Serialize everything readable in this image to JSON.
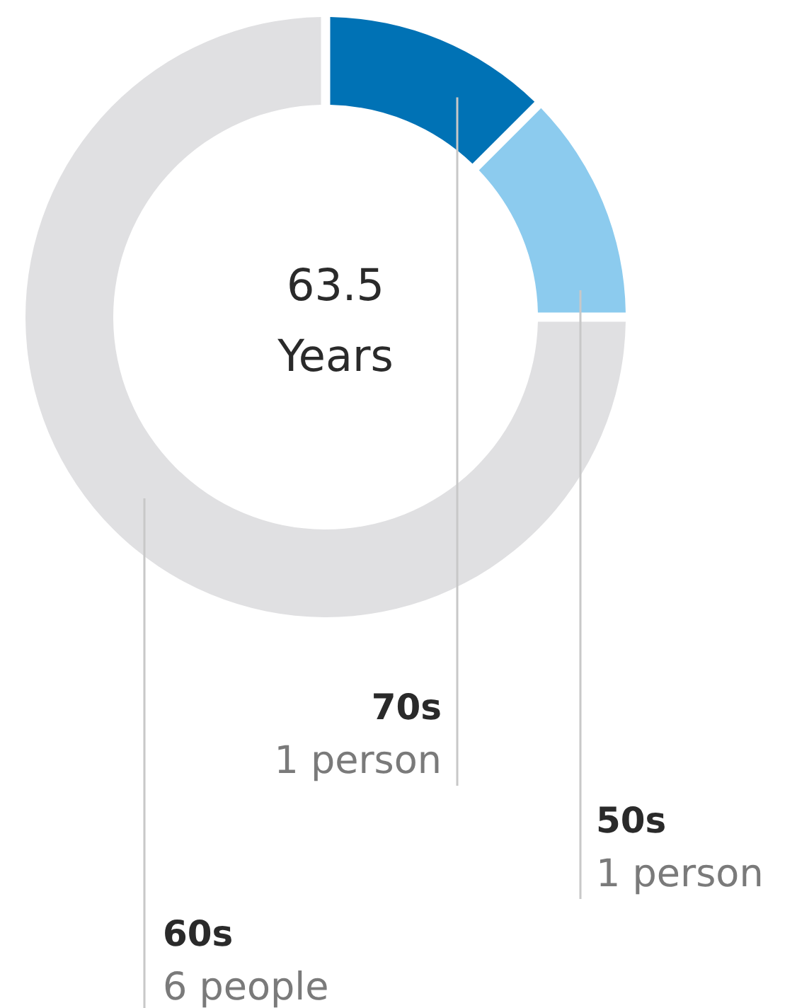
{
  "chart_data": {
    "type": "donut",
    "categories": [
      "70s",
      "50s",
      "60s"
    ],
    "values": [
      1,
      1,
      6
    ],
    "value_labels": [
      "1 person",
      "1 person",
      "6 people"
    ],
    "colors": [
      "#0072b5",
      "#8ccbee",
      "#e0e0e2"
    ],
    "annotations": [
      "63.5",
      "Years"
    ]
  }
}
